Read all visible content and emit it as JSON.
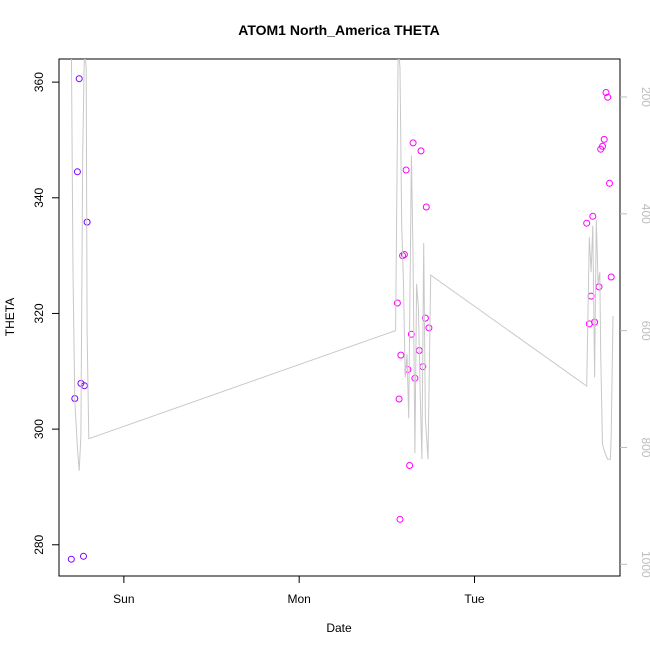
{
  "chart_data": {
    "type": "scatter",
    "title": "ATOM1 North_America THETA",
    "xlabel": "Date",
    "ylabel": "THETA",
    "x_ticks": [
      {
        "x": 1.0,
        "label": "Sun"
      },
      {
        "x": 2.0,
        "label": "Mon"
      },
      {
        "x": 3.0,
        "label": "Tue"
      }
    ],
    "xlim": [
      0.63,
      3.83
    ],
    "ylim": [
      274.6,
      364.0
    ],
    "y_ticks": [
      280,
      300,
      320,
      340,
      360
    ],
    "y2lim": [
      1020,
      135
    ],
    "y2_ticks": [
      200,
      400,
      600,
      800,
      1000
    ],
    "grid": false,
    "series": [
      {
        "color": "#7f00ff",
        "points": [
          [
            0.7,
            277.5
          ],
          [
            0.72,
            305.3
          ],
          [
            0.735,
            344.5
          ],
          [
            0.745,
            360.6
          ],
          [
            0.755,
            307.9
          ],
          [
            0.77,
            278.0
          ],
          [
            0.775,
            307.5
          ],
          [
            0.79,
            335.8
          ]
        ]
      },
      {
        "color": "#ff00ff",
        "points": [
          [
            2.56,
            321.8
          ],
          [
            2.57,
            305.2
          ],
          [
            2.575,
            284.4
          ],
          [
            2.58,
            312.8
          ],
          [
            2.59,
            330.0
          ],
          [
            2.6,
            330.2
          ],
          [
            2.61,
            344.8
          ],
          [
            2.62,
            310.3
          ],
          [
            2.63,
            293.7
          ],
          [
            2.64,
            316.4
          ],
          [
            2.65,
            349.5
          ],
          [
            2.66,
            308.8
          ],
          [
            2.685,
            313.6
          ],
          [
            2.695,
            348.1
          ],
          [
            2.705,
            310.8
          ],
          [
            2.72,
            319.2
          ],
          [
            2.725,
            338.4
          ],
          [
            2.74,
            317.5
          ],
          [
            3.64,
            335.6
          ],
          [
            3.655,
            318.2
          ],
          [
            3.665,
            323.0
          ],
          [
            3.675,
            336.8
          ],
          [
            3.685,
            318.5
          ],
          [
            3.71,
            324.6
          ],
          [
            3.72,
            348.4
          ],
          [
            3.73,
            348.9
          ],
          [
            3.74,
            350.1
          ],
          [
            3.75,
            358.2
          ],
          [
            3.76,
            357.4
          ],
          [
            3.77,
            342.5
          ],
          [
            3.78,
            326.3
          ]
        ]
      },
      {
        "axis": "right",
        "color": "#c8c8c8",
        "line": [
          [
            0.7,
            95
          ],
          [
            0.71,
            500
          ],
          [
            0.72,
            720
          ],
          [
            0.735,
            800
          ],
          [
            0.745,
            840
          ],
          [
            0.755,
            780
          ],
          [
            0.765,
            300
          ],
          [
            0.775,
            120
          ],
          [
            0.785,
            150
          ],
          [
            0.79,
            600
          ],
          [
            0.8,
            785
          ],
          [
            2.55,
            600
          ],
          [
            2.565,
            110
          ],
          [
            2.575,
            150
          ],
          [
            2.585,
            420
          ],
          [
            2.595,
            520
          ],
          [
            2.605,
            680
          ],
          [
            2.615,
            640
          ],
          [
            2.625,
            750
          ],
          [
            2.64,
            300
          ],
          [
            2.65,
            480
          ],
          [
            2.66,
            810
          ],
          [
            2.67,
            520
          ],
          [
            2.68,
            560
          ],
          [
            2.69,
            700
          ],
          [
            2.7,
            820
          ],
          [
            2.71,
            450
          ],
          [
            2.72,
            750
          ],
          [
            2.735,
            820
          ],
          [
            2.75,
            505
          ],
          [
            3.64,
            695
          ],
          [
            3.655,
            440
          ],
          [
            3.665,
            500
          ],
          [
            3.675,
            420
          ],
          [
            3.685,
            680
          ],
          [
            3.695,
            410
          ],
          [
            3.705,
            520
          ],
          [
            3.715,
            500
          ],
          [
            3.72,
            640
          ],
          [
            3.73,
            795
          ],
          [
            3.745,
            810
          ],
          [
            3.76,
            820
          ],
          [
            3.775,
            820
          ],
          [
            3.78,
            780
          ],
          [
            3.79,
            575
          ]
        ]
      }
    ]
  }
}
